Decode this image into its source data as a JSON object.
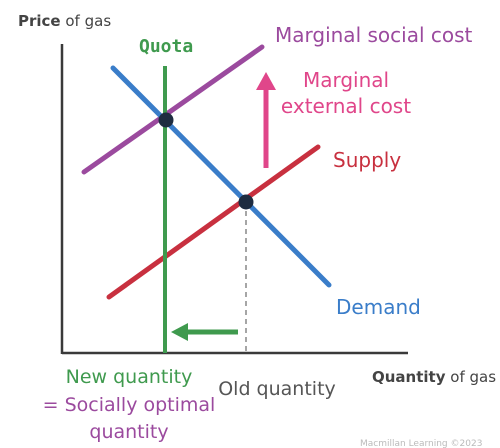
{
  "axes": {
    "y_title_bold": "Price",
    "y_title_rest": " of gas",
    "x_title_bold": "Quantity",
    "x_title_rest": " of gas"
  },
  "labels": {
    "quota": "Quota",
    "msc": "Marginal social cost",
    "mec_line1": "Marginal",
    "mec_line2": "external cost",
    "supply": "Supply",
    "demand": "Demand",
    "new_qty_line1": "New quantity",
    "new_qty_line2": "= Socially optimal",
    "new_qty_line3": "quantity",
    "old_qty": "Old quantity",
    "credit": "Macmillan Learning ©2023"
  },
  "colors": {
    "msc": "#9b4a9e",
    "mec": "#e0468a",
    "supply": "#c8303f",
    "demand": "#3a7dc9",
    "quota": "#3f9a4e",
    "axis": "#3a3a3a",
    "point": "#1e2c40",
    "dashed": "#888888"
  }
}
